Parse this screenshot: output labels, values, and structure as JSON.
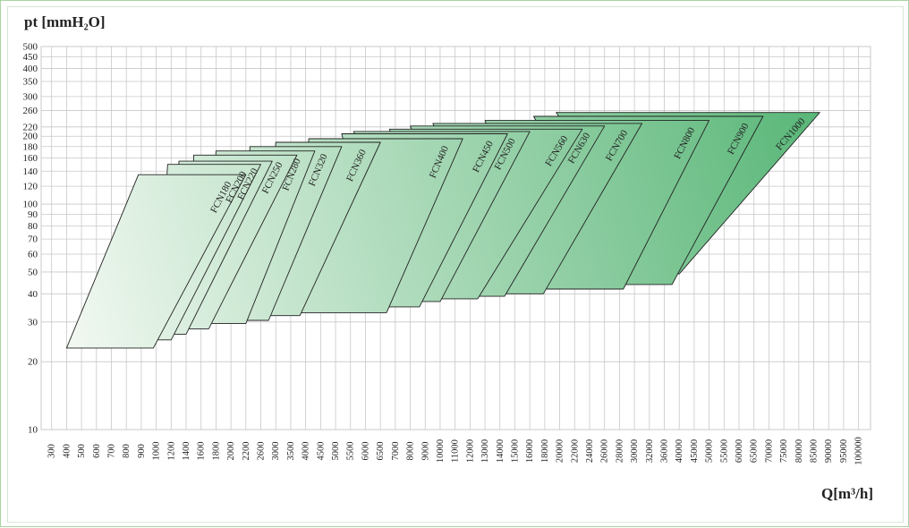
{
  "chart_data": {
    "type": "area",
    "ylabel": "pt [mmH₂O]",
    "xlabel": "Q[m³/h]",
    "y_scale": "log",
    "x_scale": "log",
    "ylim": [
      10,
      500
    ],
    "grid": true,
    "y_ticks": [
      10,
      20,
      30,
      40,
      50,
      60,
      70,
      80,
      90,
      100,
      120,
      140,
      160,
      180,
      200,
      220,
      260,
      300,
      350,
      400,
      450,
      500
    ],
    "x_ticks": [
      "300",
      "400",
      "500",
      "600",
      "700",
      "800",
      "900",
      "1000",
      "1200",
      "1400",
      "1600",
      "1800",
      "2000",
      "2200",
      "2600",
      "3000",
      "3500",
      "4000",
      "4500",
      "5000",
      "5500",
      "6000",
      "6500",
      "7000",
      "8000",
      "9000",
      "10000",
      "11000",
      "12000",
      "13000",
      "14000",
      "15000",
      "16000",
      "18000",
      "20000",
      "22000",
      "24000",
      "26000",
      "28000",
      "30000",
      "32000",
      "36000",
      "40000",
      "45000",
      "50000",
      "55000",
      "60000",
      "65000",
      "70000",
      "75000",
      "80000",
      "85000",
      "90000",
      "95000",
      "100000"
    ],
    "series": [
      {
        "name": "FCN180",
        "q_min_low": 400,
        "q_max_low": 980,
        "q_min_high": 880,
        "q_max_high": 2200,
        "p_low": 23,
        "p_high": 135
      },
      {
        "name": "FCN200",
        "q_min_low": 1000,
        "q_max_low": 1200,
        "q_min_high": 1150,
        "q_max_high": 2600,
        "p_low": 25,
        "p_high": 150
      },
      {
        "name": "FCN220",
        "q_min_low": 1200,
        "q_max_low": 1400,
        "q_min_high": 1300,
        "q_max_high": 2900,
        "p_low": 26.5,
        "p_high": 155
      },
      {
        "name": "FCN250",
        "q_min_low": 1400,
        "q_max_low": 1700,
        "q_min_high": 1500,
        "q_max_high": 3700,
        "p_low": 28,
        "p_high": 165
      },
      {
        "name": "FCN280",
        "q_min_low": 1700,
        "q_max_low": 2200,
        "q_min_high": 1800,
        "q_max_high": 4300,
        "p_low": 29.5,
        "p_high": 172
      },
      {
        "name": "FCN320",
        "q_min_low": 2200,
        "q_max_low": 2800,
        "q_min_high": 2300,
        "q_max_high": 5200,
        "p_low": 30.5,
        "p_high": 180
      },
      {
        "name": "FCN360",
        "q_min_low": 2800,
        "q_max_low": 3800,
        "q_min_high": 3000,
        "q_max_high": 6500,
        "p_low": 32,
        "p_high": 188
      },
      {
        "name": "FCN400",
        "q_min_low": 3800,
        "q_max_low": 6700,
        "q_min_high": 4100,
        "q_max_high": 11500,
        "p_low": 33,
        "p_high": 195
      },
      {
        "name": "FCN450",
        "q_min_low": 6700,
        "q_max_low": 8600,
        "q_min_high": 5200,
        "q_max_high": 14500,
        "p_low": 35,
        "p_high": 205
      },
      {
        "name": "FCN500",
        "q_min_low": 8600,
        "q_max_low": 10000,
        "q_min_high": 5600,
        "q_max_high": 16000,
        "p_low": 37,
        "p_high": 210
      },
      {
        "name": "FCN560",
        "q_min_low": 10000,
        "q_max_low": 12500,
        "q_min_high": 6800,
        "q_max_high": 23000,
        "p_low": 38,
        "p_high": 215
      },
      {
        "name": "FCN630",
        "q_min_low": 12500,
        "q_max_low": 14300,
        "q_min_high": 8000,
        "q_max_high": 26000,
        "p_low": 39,
        "p_high": 222
      },
      {
        "name": "FCN700",
        "q_min_low": 14300,
        "q_max_low": 17800,
        "q_min_high": 9500,
        "q_max_high": 31000,
        "p_low": 40,
        "p_high": 228
      },
      {
        "name": "FCN800",
        "q_min_low": 17800,
        "q_max_low": 28500,
        "q_min_high": 13000,
        "q_max_high": 50000,
        "p_low": 42,
        "p_high": 235
      },
      {
        "name": "FCN900",
        "q_min_low": 28500,
        "q_max_low": 38000,
        "q_min_high": 16500,
        "q_max_high": 68000,
        "p_low": 44,
        "p_high": 245
      },
      {
        "name": "FCN1000",
        "q_min_low": 38000,
        "q_max_low": 40000,
        "q_min_high": 19500,
        "q_max_high": 87000,
        "p_low": 49,
        "p_high": 255
      }
    ]
  },
  "colors": {
    "grid": "#c8c8c8",
    "fill_light": "#f4f9f3",
    "fill_dark": "#58b677",
    "stroke": "#222222"
  }
}
